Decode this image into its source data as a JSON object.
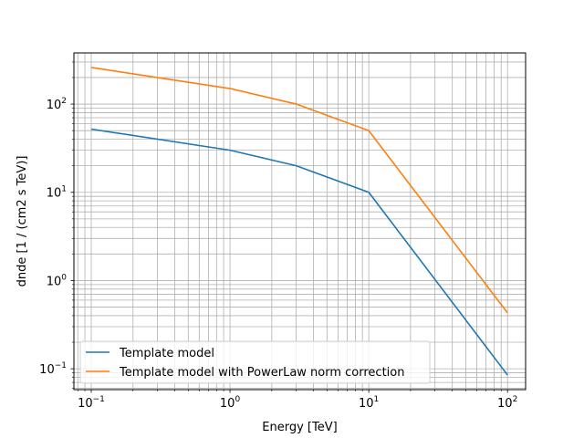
{
  "chart_data": {
    "type": "line",
    "xscale": "log",
    "yscale": "log",
    "xlabel": "Energy [TeV]",
    "ylabel": "dnde [1 / (cm2 s TeV)]",
    "xlim": [
      0.075,
      135
    ],
    "ylim": [
      0.058,
      380
    ],
    "grid": "both-major-minor",
    "legend_position": "lower-left",
    "x_ticks": [
      {
        "value": 0.1,
        "base": "10",
        "exp": "−1"
      },
      {
        "value": 1,
        "base": "10",
        "exp": "0"
      },
      {
        "value": 10,
        "base": "10",
        "exp": "1"
      },
      {
        "value": 100,
        "base": "10",
        "exp": "2"
      }
    ],
    "y_ticks": [
      {
        "value": 0.1,
        "base": "10",
        "exp": "−1"
      },
      {
        "value": 1,
        "base": "10",
        "exp": "0"
      },
      {
        "value": 10,
        "base": "10",
        "exp": "1"
      },
      {
        "value": 100,
        "base": "10",
        "exp": "2"
      }
    ],
    "series": [
      {
        "name": "Template model",
        "color": "#1f77b4",
        "x": [
          0.1,
          1,
          3,
          10,
          100
        ],
        "y": [
          52,
          30,
          20,
          10,
          0.085
        ]
      },
      {
        "name": "Template model with PowerLaw norm correction",
        "color": "#ff7f0e",
        "x": [
          0.1,
          1,
          3,
          10,
          100
        ],
        "y": [
          260,
          150,
          100,
          50,
          0.43
        ]
      }
    ]
  }
}
